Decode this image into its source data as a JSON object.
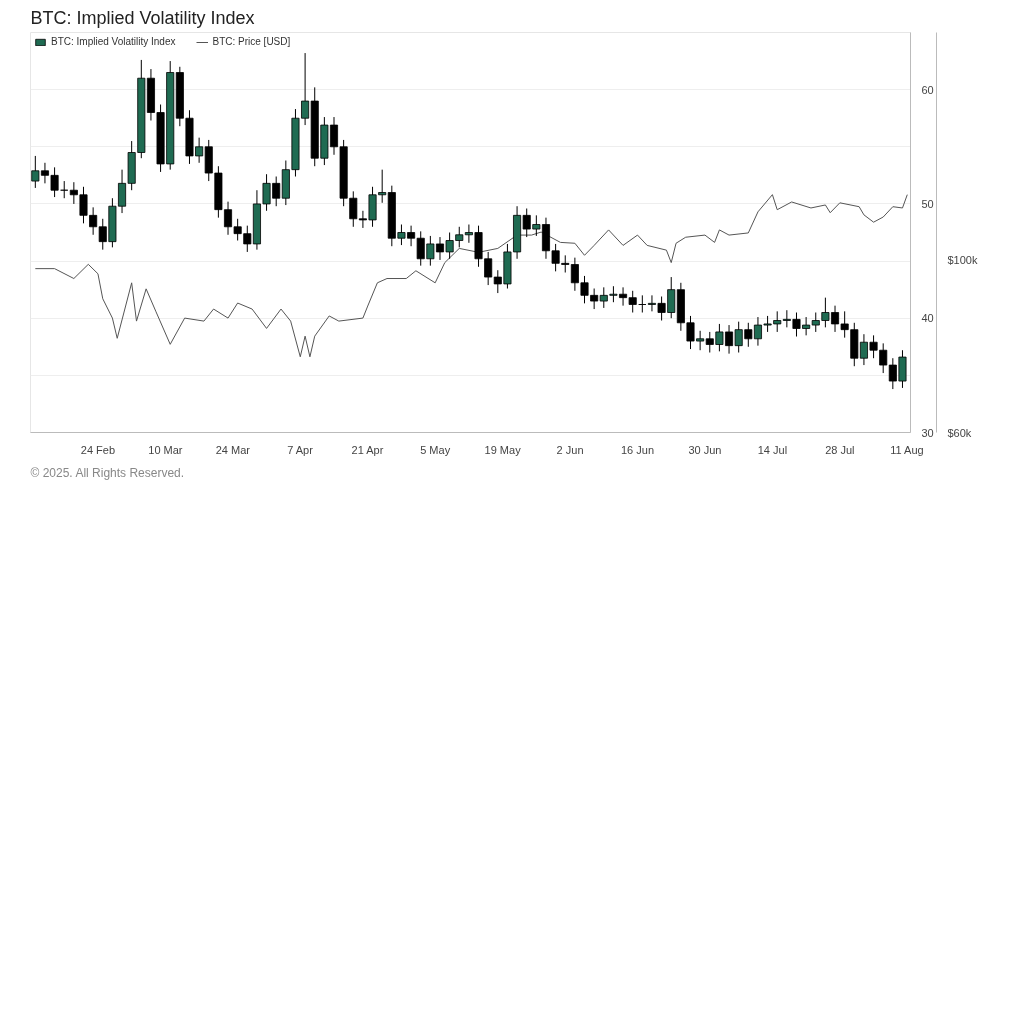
{
  "chart_data": {
    "type": "candlestick",
    "title": "BTC: Implied Volatility Index",
    "annotations": [
      "© 2025. All Rights Reserved."
    ],
    "series": [
      {
        "name": "BTC: Implied Volatility Index",
        "x": [
          "2025-02-11",
          "2025-02-13",
          "2025-02-15",
          "2025-02-17",
          "2025-02-19",
          "2025-02-21",
          "2025-02-23",
          "2025-02-25",
          "2025-02-27",
          "2025-03-01",
          "2025-03-03",
          "2025-03-05",
          "2025-03-07",
          "2025-03-09",
          "2025-03-11",
          "2025-03-13",
          "2025-03-15",
          "2025-03-17",
          "2025-03-19",
          "2025-03-21",
          "2025-03-23",
          "2025-03-25",
          "2025-03-27",
          "2025-03-29",
          "2025-03-31",
          "2025-04-02",
          "2025-04-04",
          "2025-04-06",
          "2025-04-08",
          "2025-04-10",
          "2025-04-12",
          "2025-04-14",
          "2025-04-16",
          "2025-04-18",
          "2025-04-20",
          "2025-04-22",
          "2025-04-24",
          "2025-04-26",
          "2025-04-28",
          "2025-04-30",
          "2025-05-02",
          "2025-05-04",
          "2025-05-06",
          "2025-05-08",
          "2025-05-10",
          "2025-05-12",
          "2025-05-14",
          "2025-05-16",
          "2025-05-18",
          "2025-05-20",
          "2025-05-22",
          "2025-05-24",
          "2025-05-26",
          "2025-05-28",
          "2025-05-30",
          "2025-06-01",
          "2025-06-03",
          "2025-06-05",
          "2025-06-07",
          "2025-06-09",
          "2025-06-11",
          "2025-06-13",
          "2025-06-15",
          "2025-06-17",
          "2025-06-19",
          "2025-06-21",
          "2025-06-23",
          "2025-06-25",
          "2025-06-27",
          "2025-06-29",
          "2025-07-01",
          "2025-07-03",
          "2025-07-05",
          "2025-07-07",
          "2025-07-09",
          "2025-07-11",
          "2025-07-13",
          "2025-07-15",
          "2025-07-17",
          "2025-07-19",
          "2025-07-21",
          "2025-07-23",
          "2025-07-25",
          "2025-07-27",
          "2025-07-29",
          "2025-07-31",
          "2025-08-02",
          "2025-08-04",
          "2025-08-06",
          "2025-08-08",
          "2025-08-10"
        ],
        "ohlc": [
          [
            52.0,
            54.2,
            51.4,
            52.9
          ],
          [
            52.9,
            53.6,
            51.8,
            52.5
          ],
          [
            52.5,
            53.2,
            50.6,
            51.2
          ],
          [
            51.2,
            52.0,
            50.5,
            51.2
          ],
          [
            51.2,
            51.9,
            50.0,
            50.8
          ],
          [
            50.8,
            51.5,
            48.3,
            49.0
          ],
          [
            49.0,
            49.7,
            47.3,
            48.0
          ],
          [
            48.0,
            48.7,
            46.0,
            46.7
          ],
          [
            46.7,
            50.5,
            46.2,
            49.8
          ],
          [
            49.8,
            53.0,
            49.2,
            51.8
          ],
          [
            51.8,
            55.5,
            51.2,
            54.5
          ],
          [
            54.5,
            62.6,
            54.0,
            61.0
          ],
          [
            61.0,
            61.8,
            57.3,
            58.0
          ],
          [
            58.0,
            58.7,
            52.8,
            53.5
          ],
          [
            53.5,
            62.5,
            53.0,
            61.5
          ],
          [
            61.5,
            62.0,
            56.8,
            57.5
          ],
          [
            57.5,
            58.2,
            53.5,
            54.2
          ],
          [
            54.2,
            55.8,
            53.6,
            55.0
          ],
          [
            55.0,
            55.6,
            52.0,
            52.7
          ],
          [
            52.7,
            53.3,
            48.8,
            49.5
          ],
          [
            49.5,
            50.2,
            47.3,
            48.0
          ],
          [
            48.0,
            48.7,
            46.8,
            47.4
          ],
          [
            47.4,
            48.1,
            45.8,
            46.5
          ],
          [
            46.5,
            51.2,
            46.0,
            50.0
          ],
          [
            50.0,
            52.6,
            49.4,
            51.8
          ],
          [
            51.8,
            52.4,
            49.8,
            50.5
          ],
          [
            50.5,
            53.8,
            49.9,
            53.0
          ],
          [
            53.0,
            58.3,
            52.4,
            57.5
          ],
          [
            57.5,
            63.2,
            56.9,
            59.0
          ],
          [
            59.0,
            60.2,
            53.3,
            54.0
          ],
          [
            54.0,
            57.6,
            53.4,
            56.9
          ],
          [
            56.9,
            57.6,
            54.3,
            55.0
          ],
          [
            55.0,
            55.6,
            49.8,
            50.5
          ],
          [
            50.5,
            51.1,
            48.0,
            48.7
          ],
          [
            48.7,
            49.4,
            47.9,
            48.6
          ],
          [
            48.6,
            51.5,
            48.0,
            50.8
          ],
          [
            50.8,
            53.0,
            50.1,
            51.0
          ],
          [
            51.0,
            51.6,
            46.3,
            47.0
          ],
          [
            47.0,
            48.2,
            46.4,
            47.5
          ],
          [
            47.5,
            48.1,
            46.3,
            47.0
          ],
          [
            47.0,
            47.6,
            44.6,
            45.2
          ],
          [
            45.2,
            47.2,
            44.6,
            46.5
          ],
          [
            46.5,
            47.1,
            45.1,
            45.8
          ],
          [
            45.8,
            47.5,
            45.2,
            46.8
          ],
          [
            46.8,
            48.0,
            46.2,
            47.3
          ],
          [
            47.3,
            48.2,
            46.6,
            47.5
          ],
          [
            47.5,
            48.1,
            44.5,
            45.2
          ],
          [
            45.2,
            45.8,
            42.9,
            43.6
          ],
          [
            43.6,
            44.2,
            42.2,
            43.0
          ],
          [
            43.0,
            46.5,
            42.6,
            45.8
          ],
          [
            45.8,
            49.8,
            45.2,
            49.0
          ],
          [
            49.0,
            49.6,
            47.1,
            47.8
          ],
          [
            47.8,
            49.0,
            47.2,
            48.2
          ],
          [
            48.2,
            48.8,
            45.2,
            45.9
          ],
          [
            45.9,
            46.5,
            44.1,
            44.8
          ],
          [
            44.8,
            45.5,
            44.0,
            44.7
          ],
          [
            44.7,
            45.3,
            42.4,
            43.1
          ],
          [
            43.1,
            43.7,
            41.3,
            42.0
          ],
          [
            42.0,
            42.6,
            40.8,
            41.5
          ],
          [
            41.5,
            42.7,
            40.9,
            42.0
          ],
          [
            42.0,
            42.8,
            41.4,
            42.1
          ],
          [
            42.1,
            42.7,
            41.1,
            41.8
          ],
          [
            41.8,
            42.4,
            40.5,
            41.2
          ],
          [
            41.2,
            42.0,
            40.5,
            41.2
          ],
          [
            41.2,
            42.0,
            40.6,
            41.3
          ],
          [
            41.3,
            41.9,
            39.8,
            40.5
          ],
          [
            40.5,
            43.6,
            40.0,
            42.5
          ],
          [
            42.5,
            43.1,
            38.9,
            39.6
          ],
          [
            39.6,
            40.2,
            37.3,
            38.0
          ],
          [
            38.0,
            38.9,
            37.2,
            38.2
          ],
          [
            38.2,
            38.8,
            37.0,
            37.7
          ],
          [
            37.7,
            39.5,
            37.1,
            38.8
          ],
          [
            38.8,
            39.4,
            36.9,
            37.6
          ],
          [
            37.6,
            39.7,
            37.0,
            39.0
          ],
          [
            39.0,
            39.6,
            37.5,
            38.2
          ],
          [
            38.2,
            40.1,
            37.6,
            39.4
          ],
          [
            39.4,
            40.2,
            38.8,
            39.5
          ],
          [
            39.5,
            40.6,
            38.8,
            39.8
          ],
          [
            39.8,
            40.7,
            39.2,
            39.9
          ],
          [
            39.9,
            40.5,
            38.4,
            39.1
          ],
          [
            39.1,
            40.1,
            38.5,
            39.4
          ],
          [
            39.4,
            40.5,
            38.8,
            39.8
          ],
          [
            39.8,
            41.8,
            39.2,
            40.5
          ],
          [
            40.5,
            41.1,
            38.8,
            39.5
          ],
          [
            39.5,
            40.6,
            38.3,
            39.0
          ],
          [
            39.0,
            39.6,
            35.8,
            36.5
          ],
          [
            36.5,
            38.6,
            35.9,
            37.9
          ],
          [
            37.9,
            38.5,
            36.5,
            37.2
          ],
          [
            37.2,
            37.8,
            35.2,
            35.9
          ],
          [
            35.9,
            36.5,
            33.8,
            34.5
          ],
          [
            34.5,
            37.2,
            33.9,
            36.6
          ]
        ],
        "colors": [
          "#1f6b52",
          "#000000",
          "#000000",
          "#000000",
          "#000000",
          "#000000",
          "#000000",
          "#000000",
          "#1f6b52",
          "#1f6b52",
          "#1f6b52",
          "#1f6b52",
          "#000000",
          "#000000",
          "#1f6b52",
          "#000000",
          "#000000",
          "#1f6b52",
          "#000000",
          "#000000",
          "#000000",
          "#000000",
          "#000000",
          "#1f6b52",
          "#1f6b52",
          "#000000",
          "#1f6b52",
          "#1f6b52",
          "#1f6b52",
          "#000000",
          "#1f6b52",
          "#000000",
          "#000000",
          "#000000",
          "#000000",
          "#1f6b52",
          "#1f6b52",
          "#000000",
          "#1f6b52",
          "#000000",
          "#000000",
          "#1f6b52",
          "#000000",
          "#1f6b52",
          "#1f6b52",
          "#1f6b52",
          "#000000",
          "#000000",
          "#000000",
          "#1f6b52",
          "#1f6b52",
          "#000000",
          "#1f6b52",
          "#000000",
          "#000000",
          "#000000",
          "#000000",
          "#000000",
          "#000000",
          "#1f6b52",
          "#1f6b52",
          "#000000",
          "#000000",
          "#000000",
          "#1f6b52",
          "#000000",
          "#1f6b52",
          "#000000",
          "#000000",
          "#1f6b52",
          "#000000",
          "#1f6b52",
          "#000000",
          "#1f6b52",
          "#000000",
          "#1f6b52",
          "#1f6b52",
          "#1f6b52",
          "#1f6b52",
          "#000000",
          "#1f6b52",
          "#1f6b52",
          "#1f6b52",
          "#000000",
          "#000000",
          "#000000",
          "#1f6b52",
          "#000000",
          "#000000",
          "#000000",
          "#1f6b52"
        ],
        "color": "#000000"
      },
      {
        "type": "line",
        "name": "BTC: Price [USD]",
        "axis": "y2",
        "color": "#555555",
        "x": [
          "2025-02-11",
          "2025-02-15",
          "2025-02-19",
          "2025-02-22",
          "2025-02-24",
          "2025-02-25",
          "2025-02-27",
          "2025-02-28",
          "2025-03-03",
          "2025-03-04",
          "2025-03-06",
          "2025-03-08",
          "2025-03-11",
          "2025-03-14",
          "2025-03-18",
          "2025-03-20",
          "2025-03-23",
          "2025-03-25",
          "2025-03-28",
          "2025-03-31",
          "2025-04-03",
          "2025-04-05",
          "2025-04-07",
          "2025-04-08",
          "2025-04-09",
          "2025-04-10",
          "2025-04-13",
          "2025-04-15",
          "2025-04-20",
          "2025-04-21",
          "2025-04-23",
          "2025-04-25",
          "2025-04-29",
          "2025-05-01",
          "2025-05-05",
          "2025-05-07",
          "2025-05-10",
          "2025-05-14",
          "2025-05-18",
          "2025-05-22",
          "2025-05-25",
          "2025-05-27",
          "2025-05-31",
          "2025-06-03",
          "2025-06-05",
          "2025-06-07",
          "2025-06-10",
          "2025-06-13",
          "2025-06-16",
          "2025-06-18",
          "2025-06-22",
          "2025-06-23",
          "2025-06-24",
          "2025-06-26",
          "2025-06-30",
          "2025-07-02",
          "2025-07-03",
          "2025-07-05",
          "2025-07-09",
          "2025-07-11",
          "2025-07-14",
          "2025-07-15",
          "2025-07-18",
          "2025-07-22",
          "2025-07-25",
          "2025-07-26",
          "2025-07-28",
          "2025-08-01",
          "2025-08-02",
          "2025-08-04",
          "2025-08-06",
          "2025-08-08",
          "2025-08-10",
          "2025-08-11"
        ],
        "values": [
          98100,
          98100,
          95800,
          99100,
          96900,
          91100,
          86600,
          81900,
          94800,
          85900,
          93400,
          88200,
          80500,
          86600,
          85900,
          88700,
          86600,
          90100,
          88700,
          84200,
          88700,
          85900,
          77600,
          82400,
          77600,
          82400,
          87100,
          85900,
          86600,
          89400,
          94800,
          95800,
          95800,
          97600,
          94800,
          99500,
          102800,
          101900,
          102800,
          105900,
          105900,
          106600,
          104200,
          104000,
          101200,
          103500,
          107100,
          103500,
          105900,
          103500,
          102400,
          99500,
          104000,
          105400,
          105900,
          104200,
          107100,
          105900,
          106400,
          111300,
          115300,
          111800,
          113600,
          112200,
          112900,
          111100,
          113400,
          112500,
          110600,
          108900,
          110100,
          112500,
          112200,
          115300
        ]
      }
    ],
    "xlim": [
      "2025-02-10",
      "2025-08-11T16:00"
    ],
    "xticks": [
      {
        "value": "2025-02-24",
        "label": "24 Feb"
      },
      {
        "value": "2025-03-10",
        "label": "10 Mar"
      },
      {
        "value": "2025-03-24",
        "label": "24 Mar"
      },
      {
        "value": "2025-04-07",
        "label": "7 Apr"
      },
      {
        "value": "2025-04-21",
        "label": "21 Apr"
      },
      {
        "value": "2025-05-05",
        "label": "5 May"
      },
      {
        "value": "2025-05-19",
        "label": "19 May"
      },
      {
        "value": "2025-06-02",
        "label": "2 Jun"
      },
      {
        "value": "2025-06-16",
        "label": "16 Jun"
      },
      {
        "value": "2025-06-30",
        "label": "30 Jun"
      },
      {
        "value": "2025-07-14",
        "label": "14 Jul"
      },
      {
        "value": "2025-07-28",
        "label": "28 Jul"
      },
      {
        "value": "2025-08-11",
        "label": "11 Aug"
      }
    ],
    "ylim": [
      30,
      65
    ],
    "yticks": [
      30,
      {
        "value": 35,
        "label": null
      },
      40,
      {
        "value": 45,
        "label": null
      },
      50,
      {
        "value": 55,
        "label": null
      },
      60,
      {
        "value": 65,
        "label": null
      }
    ],
    "y2lim": [
      60000,
      153000
    ],
    "y2ticks": [
      {
        "value": 60000,
        "label": "$60k"
      },
      {
        "value": 100000,
        "label": "$100k"
      }
    ],
    "grid": "y",
    "legend": "top left"
  }
}
